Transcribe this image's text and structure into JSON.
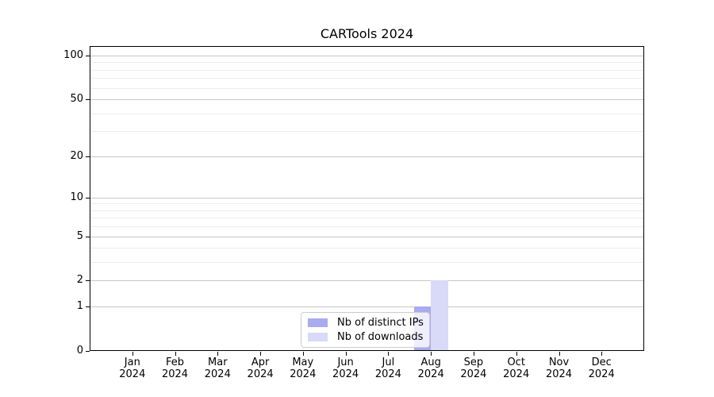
{
  "chart_data": {
    "type": "bar",
    "title": "CARTools 2024",
    "categories": [
      "Jan",
      "Feb",
      "Mar",
      "Apr",
      "May",
      "Jun",
      "Jul",
      "Aug",
      "Sep",
      "Oct",
      "Nov",
      "Dec"
    ],
    "category_year": "2024",
    "series": [
      {
        "name": "Nb of distinct IPs",
        "color": "#aaaaee",
        "values": [
          0,
          0,
          0,
          0,
          0,
          0,
          0,
          1,
          0,
          0,
          0,
          0
        ]
      },
      {
        "name": "Nb of downloads",
        "color": "#d9d9f8",
        "values": [
          0,
          0,
          0,
          0,
          0,
          0,
          0,
          2,
          0,
          0,
          0,
          0
        ]
      }
    ],
    "xlabel": "",
    "ylabel": "",
    "y_axis": {
      "scale": "log1p",
      "major_ticks": [
        0,
        1,
        2,
        5,
        10,
        20,
        50,
        100
      ],
      "minor_gridlines": [
        3,
        4,
        6,
        7,
        8,
        9,
        30,
        40,
        60,
        70,
        80,
        90
      ],
      "max_value": 116
    },
    "grid": "horizontal",
    "legend_position": "lower center",
    "background_color": "#ffffff"
  },
  "styles": {
    "major_grid_color": "#c6c6c6",
    "minor_grid_color": "#ececec",
    "axis_color": "#000000",
    "text_color": "#000000"
  }
}
